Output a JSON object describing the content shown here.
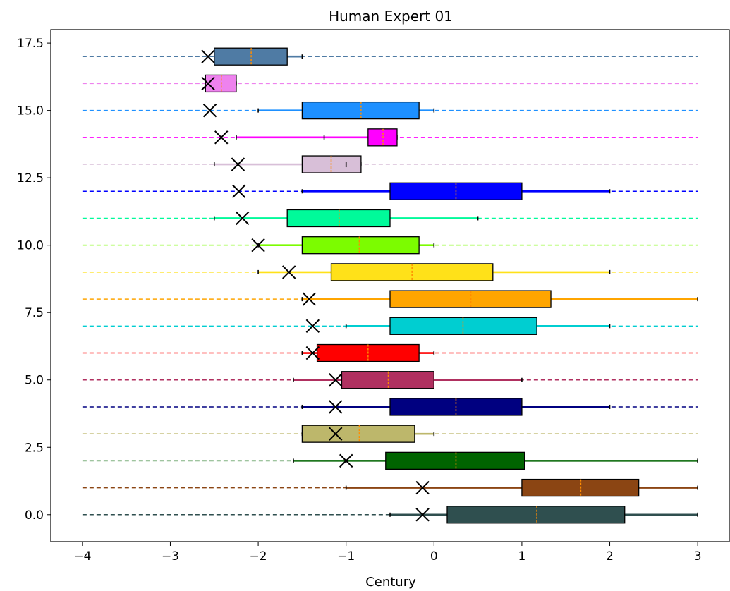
{
  "chart_data": {
    "type": "boxplot",
    "title": "Human Expert 01",
    "xlabel": "Century",
    "ylabel": "",
    "xlim": [
      -4.36,
      3.36
    ],
    "ylim": [
      -1.0,
      18.0
    ],
    "grid": false,
    "x_ticks": [
      "−4",
      "−3",
      "−2",
      "−1",
      "0",
      "1",
      "2",
      "3"
    ],
    "x_tick_values": [
      -4,
      -3,
      -2,
      -1,
      0,
      1,
      2,
      3
    ],
    "y_ticks": [
      "0.0",
      "2.5",
      "5.0",
      "7.5",
      "10.0",
      "12.5",
      "15.0",
      "17.5"
    ],
    "y_tick_values": [
      0,
      2.5,
      5,
      7.5,
      10,
      12.5,
      15,
      17.5
    ],
    "dashed_range": [
      -4,
      3
    ],
    "rows": [
      {
        "y": 0,
        "color": "#2f4f4f",
        "wlo": -0.5,
        "q1": 0.15,
        "med": 1.17,
        "q3": 2.17,
        "whi": 3.0,
        "marker": -0.13
      },
      {
        "y": 1,
        "color": "#8b4513",
        "wlo": -1.0,
        "q1": 1.0,
        "med": 1.67,
        "q3": 2.33,
        "whi": 3.0,
        "marker": -0.13
      },
      {
        "y": 2,
        "color": "#006400",
        "wlo": -1.6,
        "q1": -0.55,
        "med": 0.25,
        "q3": 1.03,
        "whi": 3.0,
        "marker": -1.0
      },
      {
        "y": 3,
        "color": "#bdb76b",
        "wlo": -1.5,
        "q1": -1.5,
        "med": -0.85,
        "q3": -0.22,
        "whi": 0.0,
        "marker": -1.12
      },
      {
        "y": 4,
        "color": "#000080",
        "wlo": -1.5,
        "q1": -0.5,
        "med": 0.25,
        "q3": 1.0,
        "whi": 2.0,
        "marker": -1.12
      },
      {
        "y": 5,
        "color": "#b03060",
        "wlo": -1.6,
        "q1": -1.05,
        "med": -0.52,
        "q3": 0.0,
        "whi": 1.0,
        "marker": -1.12
      },
      {
        "y": 6,
        "color": "#ff0000",
        "wlo": -1.5,
        "q1": -1.33,
        "med": -0.75,
        "q3": -0.17,
        "whi": 0.0,
        "marker": -1.38
      },
      {
        "y": 7,
        "color": "#00ced1",
        "wlo": -1.0,
        "q1": -0.5,
        "med": 0.33,
        "q3": 1.17,
        "whi": 2.0,
        "marker": -1.38
      },
      {
        "y": 8,
        "color": "#ffa500",
        "wlo": -1.5,
        "q1": -0.5,
        "med": 0.42,
        "q3": 1.33,
        "whi": 3.0,
        "marker": -1.42
      },
      {
        "y": 9,
        "color": "#ffe119",
        "wlo": -2.0,
        "q1": -1.17,
        "med": -0.25,
        "q3": 0.67,
        "whi": 2.0,
        "marker": -1.65
      },
      {
        "y": 10,
        "color": "#7cfc00",
        "wlo": -2.0,
        "q1": -1.5,
        "med": -0.85,
        "q3": -0.17,
        "whi": 0.0,
        "marker": -2.0
      },
      {
        "y": 11,
        "color": "#00fa9a",
        "wlo": -2.5,
        "q1": -1.67,
        "med": -1.08,
        "q3": -0.5,
        "whi": 0.5,
        "marker": -2.18
      },
      {
        "y": 12,
        "color": "#0000ff",
        "wlo": -1.5,
        "q1": -0.5,
        "med": 0.25,
        "q3": 1.0,
        "whi": 2.0,
        "marker": -2.22
      },
      {
        "y": 13,
        "color": "#d8bfd8",
        "wlo": -2.5,
        "q1": -1.5,
        "med": -1.17,
        "q3": -0.83,
        "whi": -0.83,
        "marker": -2.23,
        "mean": -1.0
      },
      {
        "y": 14,
        "color": "#ff00ff",
        "wlo": -2.25,
        "q1": -0.75,
        "med": -0.58,
        "q3": -0.42,
        "whi": -0.42,
        "marker": -2.42,
        "extra_stub": -1.25
      },
      {
        "y": 15,
        "color": "#1e90ff",
        "wlo": -2.0,
        "q1": -1.5,
        "med": -0.83,
        "q3": -0.17,
        "whi": 0.0,
        "marker": -2.55
      },
      {
        "y": 16,
        "color": "#ee82ee",
        "wlo": -2.6,
        "q1": -2.6,
        "med": -2.42,
        "q3": -2.25,
        "whi": -2.25,
        "marker": -2.57
      },
      {
        "y": 17,
        "color": "#4f7ba4",
        "wlo": -2.5,
        "q1": -2.5,
        "med": -2.08,
        "q3": -1.67,
        "whi": -1.5,
        "marker": -2.57
      }
    ]
  }
}
